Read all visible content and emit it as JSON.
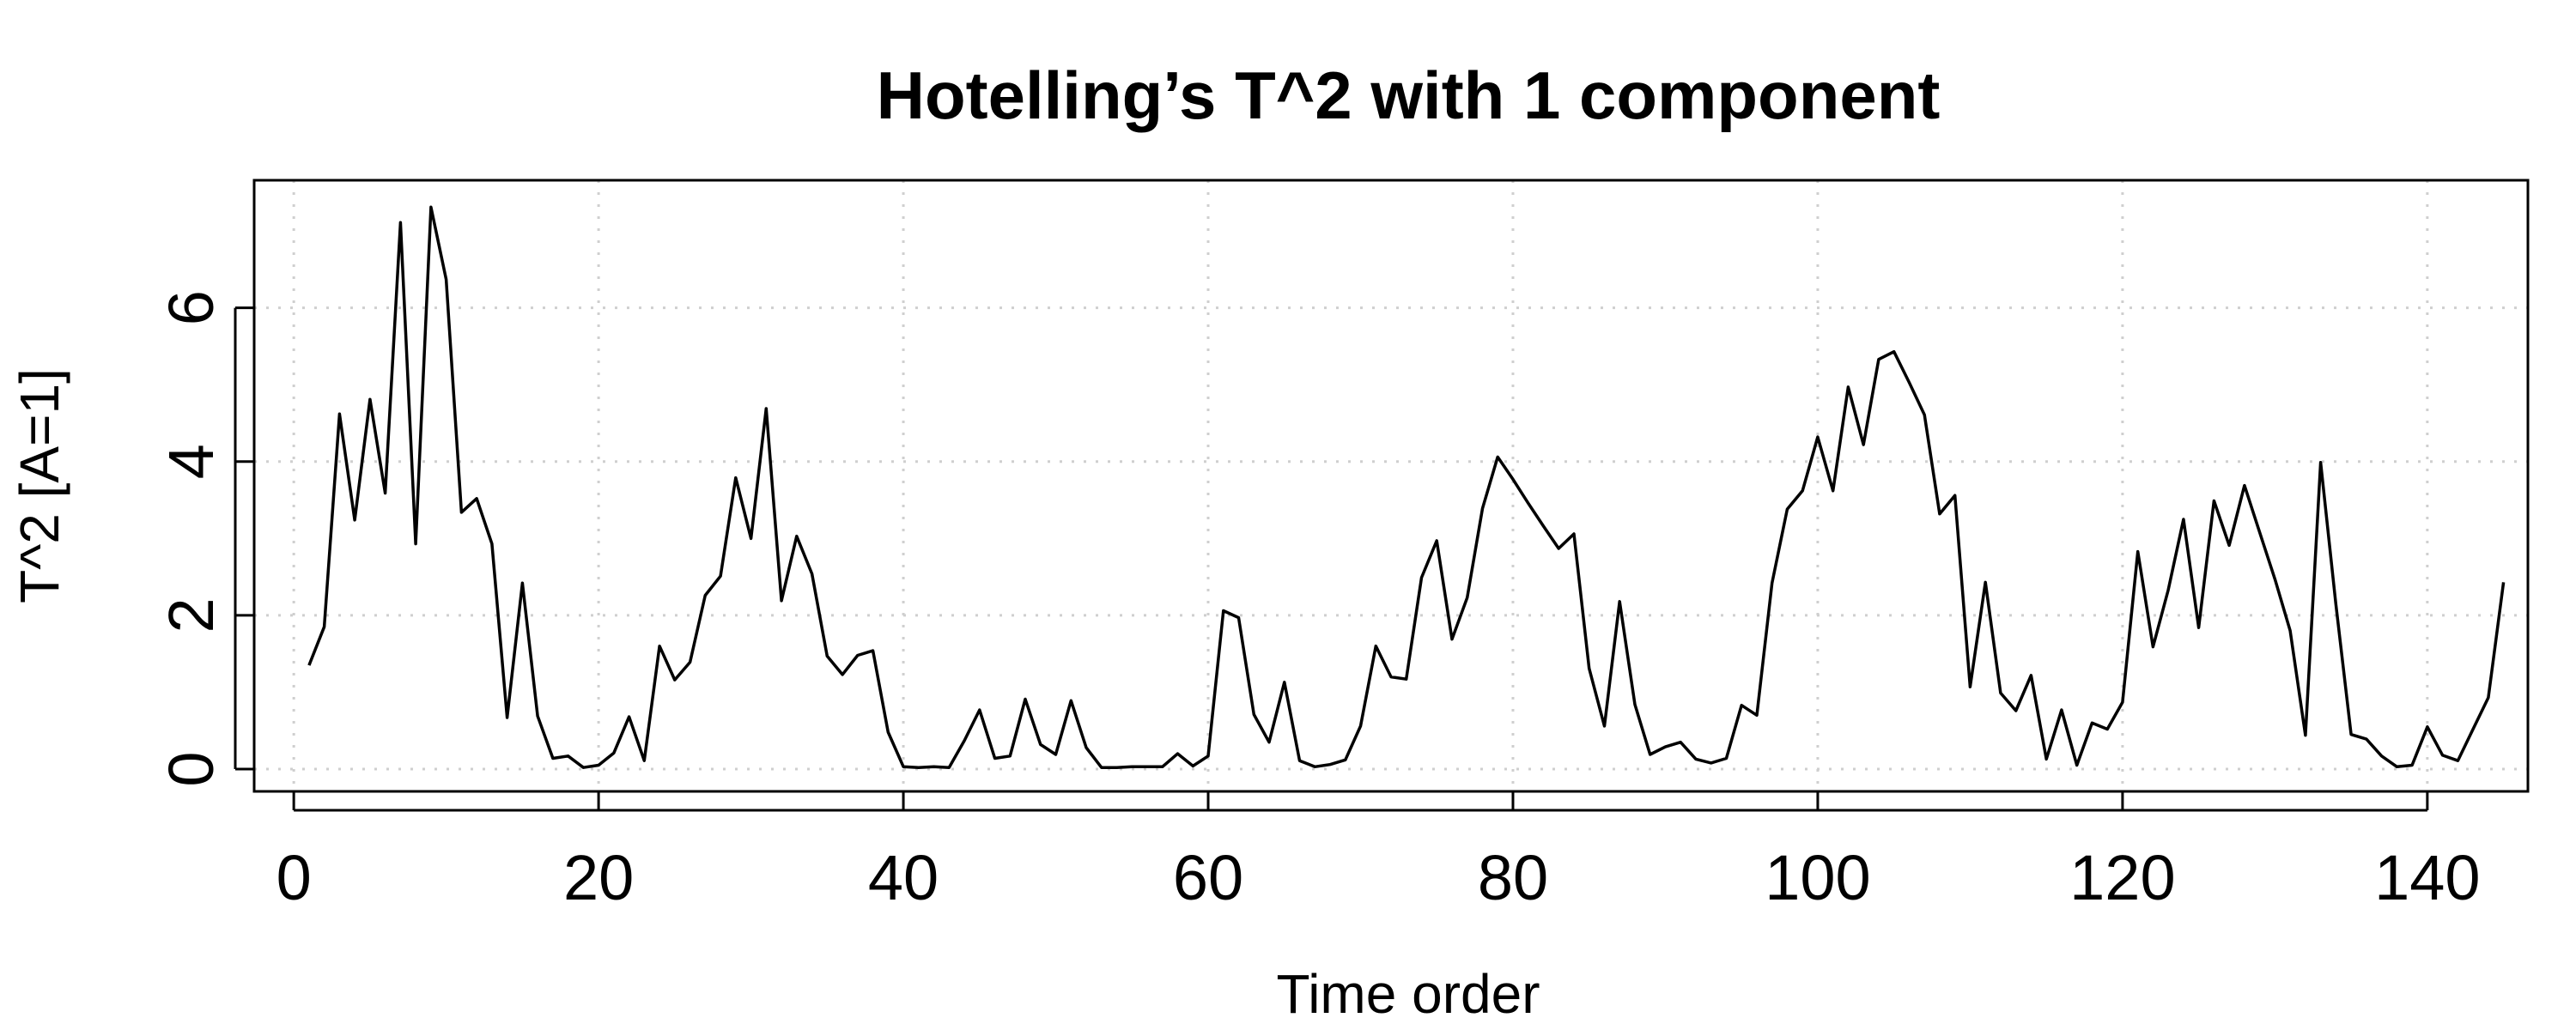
{
  "chart_data": {
    "type": "line",
    "title": "Hotelling’s T^2 with 1 component",
    "xlabel": "Time order",
    "ylabel": "T^2 [A=1]",
    "xlim": [
      -2.6,
      146.6
    ],
    "ylim": [
      -0.29,
      7.66
    ],
    "xticks": [
      0,
      20,
      40,
      60,
      80,
      100,
      120,
      140
    ],
    "yticks": [
      0,
      2,
      4,
      6
    ],
    "grid": true,
    "series": [
      {
        "x_start": 1,
        "x_step": 1,
        "y": [
          1.35,
          1.85,
          4.62,
          3.24,
          4.81,
          3.59,
          7.11,
          2.93,
          7.31,
          6.37,
          3.34,
          3.52,
          2.93,
          0.67,
          2.42,
          0.69,
          0.14,
          0.17,
          0.02,
          0.05,
          0.21,
          0.68,
          0.11,
          1.6,
          1.16,
          1.39,
          2.26,
          2.51,
          3.79,
          3.0,
          4.69,
          2.19,
          3.03,
          2.54,
          1.47,
          1.23,
          1.48,
          1.54,
          0.48,
          0.03,
          0.02,
          0.03,
          0.02,
          0.37,
          0.77,
          0.14,
          0.17,
          0.91,
          0.32,
          0.19,
          0.89,
          0.28,
          0.02,
          0.02,
          0.03,
          0.03,
          0.03,
          0.2,
          0.04,
          0.17,
          2.06,
          1.97,
          0.71,
          0.35,
          1.13,
          0.11,
          0.03,
          0.06,
          0.12,
          0.56,
          1.6,
          1.2,
          1.17,
          2.49,
          2.97,
          1.69,
          2.23,
          3.39,
          4.06,
          3.77,
          3.46,
          3.16,
          2.87,
          3.06,
          1.31,
          0.56,
          2.18,
          0.84,
          0.19,
          0.29,
          0.35,
          0.13,
          0.08,
          0.14,
          0.83,
          0.7,
          2.42,
          3.38,
          3.62,
          4.32,
          3.62,
          4.97,
          4.22,
          5.33,
          5.43,
          5.03,
          4.61,
          3.32,
          3.56,
          1.07,
          2.43,
          0.99,
          0.76,
          1.22,
          0.13,
          0.77,
          0.05,
          0.6,
          0.52,
          0.87,
          2.83,
          1.59,
          2.33,
          3.25,
          1.84,
          3.49,
          2.91,
          3.69,
          3.08,
          2.47,
          1.8,
          0.44,
          3.99,
          2.14,
          0.45,
          0.39,
          0.17,
          0.03,
          0.05,
          0.55,
          0.18,
          0.11,
          0.52,
          0.93,
          2.43
        ]
      }
    ]
  }
}
